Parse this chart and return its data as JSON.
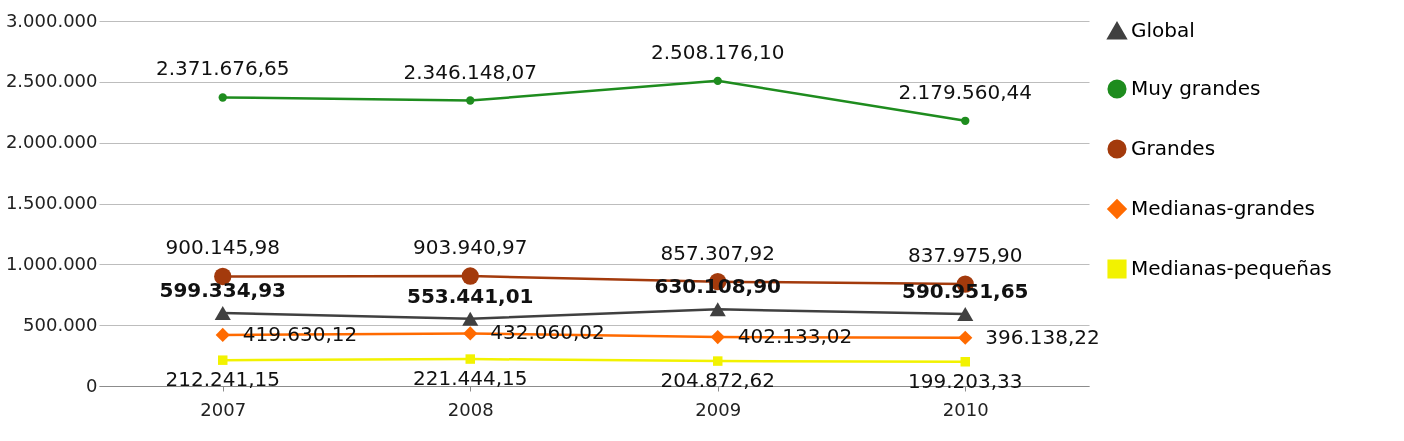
{
  "chart_data": {
    "type": "line",
    "categories": [
      "2007",
      "2008",
      "2009",
      "2010"
    ],
    "series": [
      {
        "name": "Global",
        "color": "#404040",
        "marker": "triangle",
        "values": [
          599334.93,
          553441.01,
          630108.9,
          590951.65
        ],
        "value_labels": [
          "599.334,93",
          "553.441,01",
          "630.108,90",
          "590.951,65"
        ]
      },
      {
        "name": "Muy grandes",
        "color": "#1e8c1e",
        "marker": "circle",
        "values": [
          2371676.65,
          2346148.07,
          2508176.1,
          2179560.44
        ],
        "value_labels": [
          "2.371.676,65",
          "2.346.148,07",
          "2.508.176,10",
          "2.179.560,44"
        ]
      },
      {
        "name": "Grandes",
        "color": "#a33a0c",
        "marker": "circle",
        "values": [
          900145.98,
          903940.97,
          857307.92,
          837975.9
        ],
        "value_labels": [
          "900.145,98",
          "903.940,97",
          "857.307,92",
          "837.975,90"
        ]
      },
      {
        "name": "Medianas-grandes",
        "color": "#ff6a00",
        "marker": "diamond",
        "values": [
          419630.12,
          432060.02,
          402133.02,
          396138.22
        ],
        "value_labels": [
          "419.630,12",
          "432.060,02",
          "402.133,02",
          "396.138,22"
        ]
      },
      {
        "name": "Medianas-pequeñas",
        "color": "#f2f200",
        "marker": "square",
        "values": [
          212241.15,
          221444.15,
          204872.62,
          199203.33
        ],
        "value_labels": [
          "212.241,15",
          "221.444,15",
          "204.872,62",
          "199.203,33"
        ]
      }
    ],
    "ylim": [
      0,
      3000000
    ],
    "yticks": [
      {
        "value": 0,
        "label": "0"
      },
      {
        "value": 500000,
        "label": "500.000"
      },
      {
        "value": 1000000,
        "label": "1.000.000"
      },
      {
        "value": 1500000,
        "label": "1.500.000"
      },
      {
        "value": 2000000,
        "label": "2.000.000"
      },
      {
        "value": 2500000,
        "label": "2.500.000"
      },
      {
        "value": 3000000,
        "label": "3.000.000"
      }
    ],
    "grid": "y",
    "legend": "right"
  }
}
